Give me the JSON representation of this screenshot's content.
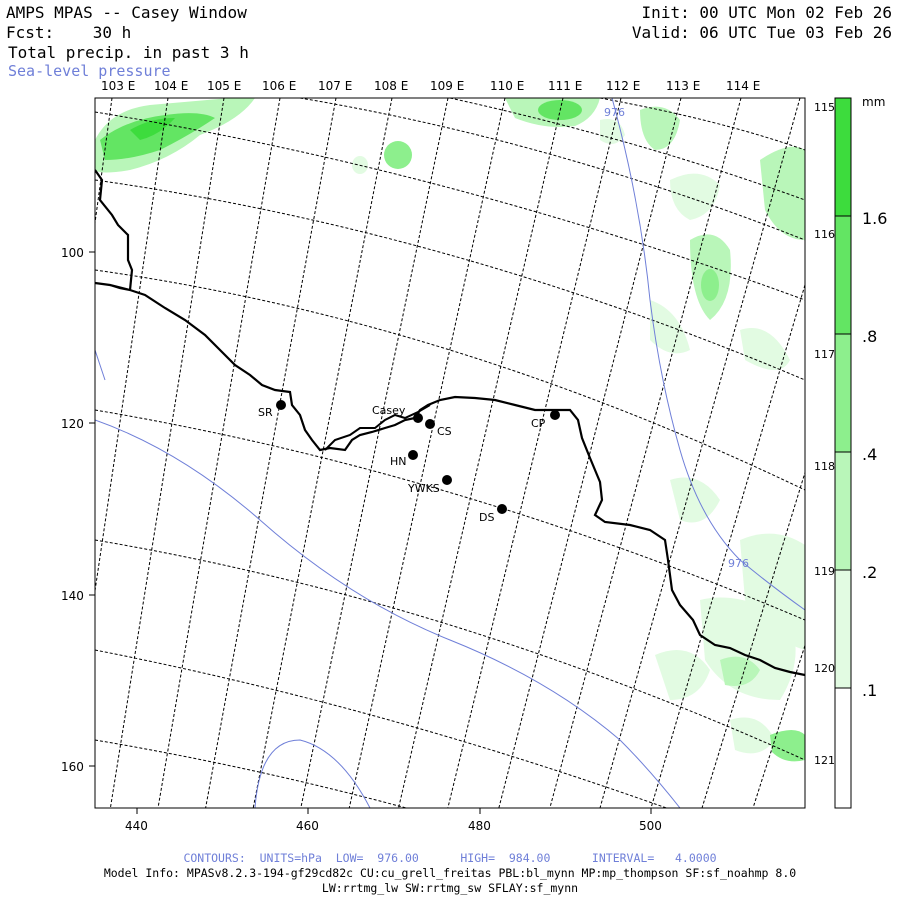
{
  "header": {
    "title": "AMPS MPAS -- Casey Window",
    "forecast": "Fcst:    30 h",
    "field": "Total precip. in past 3 h",
    "overlay": "Sea-level pressure",
    "init": "Init: 00 UTC Mon 02 Feb 26",
    "valid": "Valid: 06 UTC Tue 03 Feb 26"
  },
  "map": {
    "lon_labels_top": [
      "103 E",
      "104 E",
      "105 E",
      "106 E",
      "107 E",
      "108 E",
      "109 E",
      "110 E",
      "111 E",
      "112 E",
      "113 E",
      "114 E"
    ],
    "lon_labels_right": [
      "115 E",
      "116 E",
      "117 E",
      "118 E",
      "119 E",
      "120 E",
      "121 E"
    ],
    "x_ticks": [
      "440",
      "460",
      "480",
      "500"
    ],
    "y_ticks": [
      "100",
      "120",
      "140",
      "160"
    ],
    "isobar_label": "976",
    "stations": [
      {
        "id": "SR",
        "label": "SR"
      },
      {
        "id": "Casey",
        "label": "Casey"
      },
      {
        "id": "CS",
        "label": "CS"
      },
      {
        "id": "HN",
        "label": "HN"
      },
      {
        "id": "YWKS",
        "label": "YWKS"
      },
      {
        "id": "DS",
        "label": "DS"
      },
      {
        "id": "CP",
        "label": "CP"
      }
    ]
  },
  "colorbar": {
    "unit": "mm",
    "labels": [
      "1.6",
      ".8",
      ".4",
      ".2",
      ".1"
    ],
    "colors": [
      "#3ddc3d",
      "#63e563",
      "#8def8d",
      "#b9f6b9",
      "#e2fbe2",
      "#ffffff"
    ]
  },
  "footer": {
    "contours": "CONTOURS:  UNITS=hPa  LOW=  976.00      HIGH=  984.00      INTERVAL=   4.0000",
    "model_info": "Model Info: MPASv8.2.3-194-gf29cd82c CU:cu_grell_freitas PBL:bl_mynn MP:mp_thompson SF:sf_noahmp 8.0",
    "model_info2": "LW:rrtmg_lw SW:rrtmg_sw SFLAY:sf_mynn"
  }
}
